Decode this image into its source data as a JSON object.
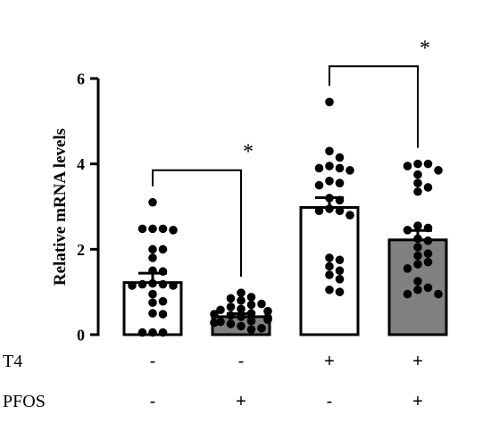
{
  "chart_data": {
    "type": "bar",
    "ylabel": "Relative mRNA levels",
    "ylim": [
      0,
      6
    ],
    "yticks": [
      "0",
      "2",
      "4",
      "6"
    ],
    "categories": [
      "- / -",
      "- / +",
      "+ / -",
      "+ / +"
    ],
    "bar_fill_colors": [
      "#ffffff",
      "#808080",
      "#ffffff",
      "#808080"
    ],
    "values": [
      1.22,
      0.42,
      2.98,
      2.22
    ],
    "errors": [
      0.22,
      0.07,
      0.23,
      0.22
    ],
    "points": [
      [
        3.1,
        2.48,
        2.48,
        2.48,
        2.45,
        2.0,
        2.0,
        1.8,
        1.5,
        1.48,
        1.2,
        1.18,
        1.18,
        1.15,
        1.15,
        0.95,
        0.78,
        0.75,
        0.5,
        0.48,
        0.05,
        0.05,
        0.05
      ],
      [
        0.98,
        0.88,
        0.85,
        0.8,
        0.72,
        0.7,
        0.65,
        0.6,
        0.58,
        0.55,
        0.5,
        0.48,
        0.45,
        0.42,
        0.4,
        0.38,
        0.35,
        0.32,
        0.3,
        0.28,
        0.25,
        0.2,
        0.15,
        0.12
      ],
      [
        5.45,
        4.3,
        4.15,
        3.95,
        3.9,
        3.9,
        3.85,
        3.6,
        3.55,
        3.5,
        3.2,
        3.15,
        2.95,
        2.9,
        2.9,
        2.8,
        1.8,
        1.75,
        1.6,
        1.5,
        1.4,
        1.3,
        1.05,
        1.0
      ],
      [
        4.0,
        4.0,
        3.95,
        3.85,
        3.75,
        3.55,
        3.45,
        3.35,
        2.55,
        2.5,
        2.45,
        2.25,
        2.2,
        2.05,
        1.9,
        1.85,
        1.7,
        1.65,
        1.55,
        1.25,
        1.1,
        1.05,
        0.95,
        0.95
      ]
    ],
    "factors": [
      {
        "label": "T4",
        "values": [
          "-",
          "-",
          "+",
          "+"
        ]
      },
      {
        "label": "PFOS",
        "values": [
          "-",
          "+",
          "-",
          "+"
        ]
      }
    ],
    "comparisons": [
      {
        "groups": [
          0,
          1
        ],
        "label": "*"
      },
      {
        "groups": [
          2,
          3
        ],
        "label": "*"
      }
    ]
  }
}
